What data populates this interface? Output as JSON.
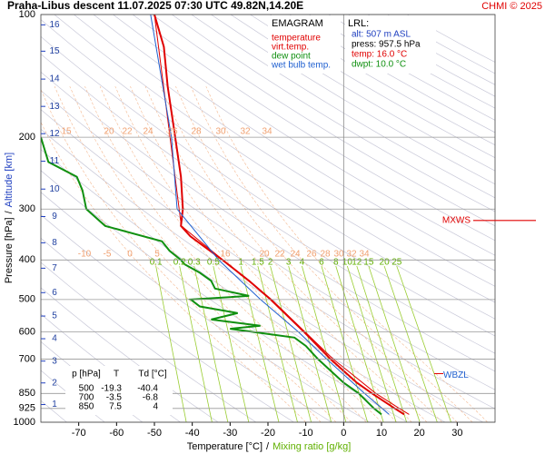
{
  "chart_data": {
    "type": "line",
    "title": "Praha-Libus  descent  11.07.2025 07:30 UTC  49.82N,14.20E",
    "copyright": "CHMI © 2025",
    "diagram_name": "EMAGRAM",
    "x_label": [
      "Temperature [°C]",
      "/",
      "Mixing ratio [g/kg]"
    ],
    "y_label": [
      "Pressure [hPa]",
      "/",
      "Altitude [km]"
    ],
    "xlim": [
      -80,
      40
    ],
    "xticks": [
      -70,
      -60,
      -50,
      -40,
      -30,
      -20,
      -10,
      0,
      10,
      20,
      30
    ],
    "ylim": [
      1000,
      100
    ],
    "ylog": true,
    "yticks": [
      100,
      200,
      300,
      400,
      500,
      600,
      700,
      850,
      925,
      1000
    ],
    "grid": true,
    "series": [
      {
        "name": "temperature",
        "color": "#e00000",
        "y": [
          957,
          925,
          850,
          800,
          700,
          600,
          500,
          450,
          400,
          370,
          350,
          330,
          300,
          250,
          200,
          150,
          120,
          100
        ],
        "values": [
          16,
          13.5,
          7.5,
          3.5,
          -3.5,
          -10.5,
          -19.3,
          -25,
          -32,
          -37,
          -40.5,
          -43,
          -42.5,
          -43,
          -44.5,
          -46.5,
          -47.5,
          -50
        ]
      },
      {
        "name": "virt.temp.",
        "color": "#e00000",
        "y": [
          957,
          925,
          850,
          700,
          500,
          400,
          330,
          100
        ],
        "values": [
          17.3,
          14.7,
          8.5,
          -2.8,
          -19.1,
          -31.9,
          -42.9,
          -50
        ]
      },
      {
        "name": "dew point",
        "color": "#109010",
        "y": [
          957,
          925,
          850,
          800,
          700,
          650,
          620,
          590,
          580,
          560,
          540,
          520,
          500,
          490,
          470,
          450,
          430,
          410,
          400,
          380,
          360,
          330,
          300,
          270,
          250,
          230,
          200
        ],
        "values": [
          10,
          8,
          4,
          0,
          -6.8,
          -10,
          -13,
          -30,
          -22,
          -35,
          -28,
          -38,
          -40.4,
          -25,
          -34,
          -35,
          -38,
          -42,
          -43,
          -46,
          -48,
          -63,
          -68,
          -69,
          -70.5,
          -78,
          -80
        ]
      },
      {
        "name": "wet bulb temp.",
        "color": "#2060d0",
        "y": [
          957,
          850,
          700,
          600,
          500,
          400,
          300,
          200,
          100
        ],
        "values": [
          12,
          5.5,
          -4.5,
          -12,
          -22,
          -33,
          -44,
          -45.5,
          -51
        ]
      }
    ],
    "altitude_ticks": [
      1,
      2,
      3,
      4,
      5,
      6,
      7,
      8,
      9,
      10,
      11,
      12,
      13,
      14,
      15,
      16
    ],
    "altitude_tick_pressure": [
      905,
      801,
      708,
      624,
      549,
      481,
      419,
      363,
      313,
      268,
      229,
      196,
      168,
      144,
      123,
      106
    ],
    "mixing_ratio_labels": [
      0.1,
      0.2,
      0.3,
      0.5,
      1,
      1.5,
      2,
      3,
      4,
      6,
      8,
      10,
      12,
      15,
      20,
      25
    ],
    "adiabat_labels_upper": [
      15,
      20,
      22,
      24,
      26,
      28,
      30,
      32,
      34
    ],
    "adiabat_labels_lower": [
      -10,
      -5,
      0,
      5,
      16,
      20,
      22,
      24,
      26,
      28,
      30,
      32,
      34
    ],
    "lrl": {
      "title": "LRL:",
      "lines": [
        "alt: 507 m ASL",
        "press: 957.5 hPa",
        "temp: 16.0 °C",
        "dwpt: 10.0 °C"
      ]
    },
    "levels": {
      "label": "MXWS",
      "pressure": 320
    },
    "wbzl": {
      "label": "WBZL",
      "pressure": 760
    },
    "table": {
      "header": [
        "p [hPa]",
        "T",
        "Td [°C]"
      ],
      "rows": [
        [
          500,
          -19.3,
          -40.4
        ],
        [
          700,
          -3.5,
          -6.8
        ],
        [
          850,
          7.5,
          4.0
        ]
      ]
    }
  }
}
